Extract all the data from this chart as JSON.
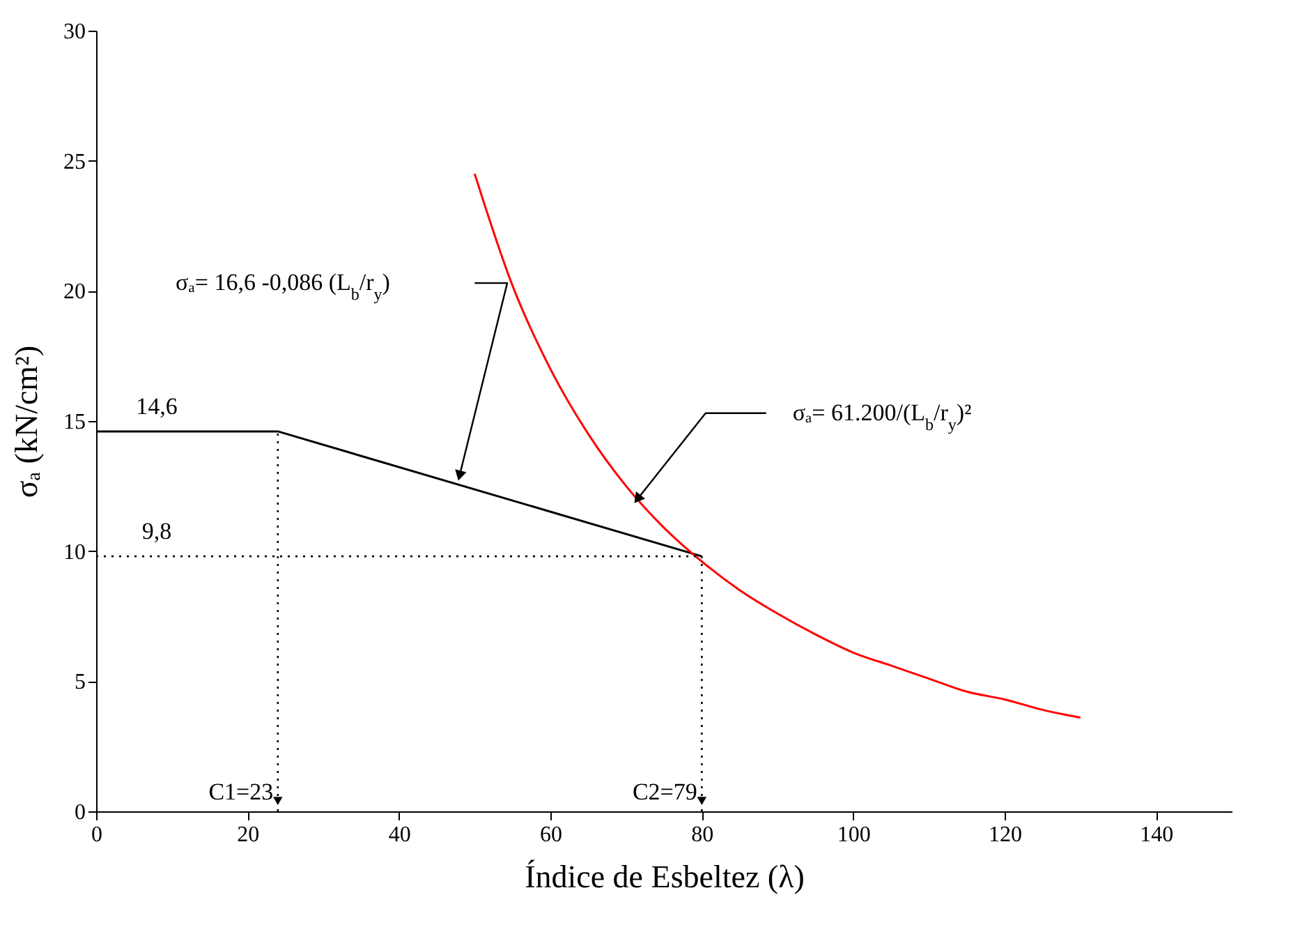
{
  "chart_data": {
    "type": "line",
    "xlabel": "Índice de Esbeltez (λ)",
    "ylabel": "σₐ (kN/cm²)",
    "xlim": [
      0,
      150
    ],
    "ylim": [
      0,
      30
    ],
    "xticks": [
      0,
      20,
      40,
      60,
      80,
      100,
      120,
      140
    ],
    "yticks": [
      0,
      5,
      10,
      15,
      20,
      25,
      30
    ],
    "grid": false,
    "marker": "none",
    "line_style": "solid",
    "series": [
      {
        "color": "#000000",
        "x": [
          0,
          24,
          80
        ],
        "values": [
          14.6,
          14.6,
          9.8
        ]
      },
      {
        "color": "#ff0000",
        "x": [
          50,
          55,
          60,
          65,
          70,
          75,
          80,
          85,
          90,
          95,
          100,
          105,
          110,
          115,
          120,
          125,
          130
        ],
        "values": [
          24.5,
          20.2,
          17.0,
          14.5,
          12.5,
          10.9,
          9.6,
          8.5,
          7.6,
          6.8,
          6.1,
          5.6,
          5.1,
          4.6,
          4.3,
          3.9,
          3.6
        ]
      },
      {
        "color": "#000000",
        "line_style": "dotted",
        "x": [
          0,
          80
        ],
        "values": [
          9.8,
          9.8
        ]
      },
      {
        "color": "#000000",
        "line_style": "dotted",
        "x": [
          24,
          24
        ],
        "values": [
          0,
          14.6
        ]
      },
      {
        "color": "#000000",
        "line_style": "dotted",
        "x": [
          80,
          80
        ],
        "values": [
          0,
          9.8
        ]
      }
    ],
    "annotations": [
      {
        "text": "14,6",
        "x": 8,
        "y": 14.6
      },
      {
        "text": "9,8",
        "x": 8,
        "y": 9.8
      },
      {
        "text": "C1=23",
        "x": 24,
        "y": 0
      },
      {
        "text": "C2=79",
        "x": 80,
        "y": 0
      },
      "σₐ= 16,6 -0,086 (L$_{b}$/r$_{y}$)",
      {
        "text": "σₐ= 61.200/(L$_{b}$/r$_{y}$)²",
        "x": 71.5,
        "y": 12.0
      }
    ]
  }
}
